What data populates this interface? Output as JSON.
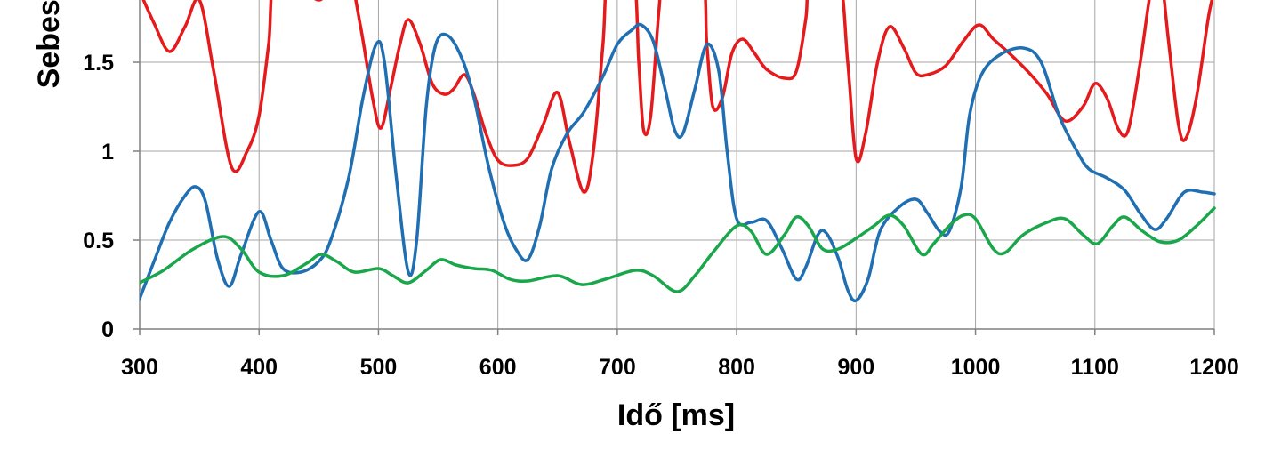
{
  "chart_data": {
    "type": "line",
    "title": "",
    "xlabel": "Idő [ms]",
    "ylabel": "Sebesség",
    "xlim": [
      300,
      1200
    ],
    "ylim": [
      0,
      2
    ],
    "x_ticks": [
      300,
      400,
      500,
      600,
      700,
      800,
      900,
      1000,
      1100,
      1200
    ],
    "y_ticks": [
      0,
      0.5,
      1,
      1.5
    ],
    "grid": true,
    "legend": "none",
    "colors": {
      "red": "#e41a1c",
      "blue": "#1f6fb2",
      "green": "#1aa64a",
      "grid": "#a6a6a6",
      "axis": "#808080"
    },
    "series": [
      {
        "color": "#e41a1c",
        "points": [
          [
            300,
            1.9
          ],
          [
            312,
            1.72
          ],
          [
            325,
            1.56
          ],
          [
            338,
            1.7
          ],
          [
            350,
            1.85
          ],
          [
            362,
            1.45
          ],
          [
            377,
            0.91
          ],
          [
            390,
            1.0
          ],
          [
            400,
            1.2
          ],
          [
            408,
            1.6
          ],
          [
            415,
            2.0
          ],
          [
            450,
            1.85
          ],
          [
            460,
            2.0
          ],
          [
            475,
            2.0
          ],
          [
            485,
            1.7
          ],
          [
            495,
            1.3
          ],
          [
            502,
            1.13
          ],
          [
            510,
            1.35
          ],
          [
            518,
            1.6
          ],
          [
            525,
            1.74
          ],
          [
            535,
            1.6
          ],
          [
            545,
            1.38
          ],
          [
            555,
            1.32
          ],
          [
            563,
            1.35
          ],
          [
            572,
            1.43
          ],
          [
            580,
            1.32
          ],
          [
            590,
            1.1
          ],
          [
            600,
            0.95
          ],
          [
            612,
            0.92
          ],
          [
            625,
            0.96
          ],
          [
            638,
            1.15
          ],
          [
            650,
            1.33
          ],
          [
            660,
            1.05
          ],
          [
            672,
            0.77
          ],
          [
            680,
            1.0
          ],
          [
            688,
            1.6
          ],
          [
            693,
            2.0
          ],
          [
            713,
            2.0
          ],
          [
            718,
            1.5
          ],
          [
            722,
            1.12
          ],
          [
            728,
            1.2
          ],
          [
            735,
            1.8
          ],
          [
            740,
            2.0
          ],
          [
            770,
            2.0
          ],
          [
            775,
            1.6
          ],
          [
            780,
            1.25
          ],
          [
            788,
            1.3
          ],
          [
            796,
            1.55
          ],
          [
            805,
            1.63
          ],
          [
            815,
            1.55
          ],
          [
            825,
            1.46
          ],
          [
            840,
            1.41
          ],
          [
            850,
            1.45
          ],
          [
            858,
            1.75
          ],
          [
            862,
            2.0
          ],
          [
            885,
            2.0
          ],
          [
            893,
            1.5
          ],
          [
            900,
            0.96
          ],
          [
            908,
            1.1
          ],
          [
            918,
            1.5
          ],
          [
            928,
            1.7
          ],
          [
            940,
            1.58
          ],
          [
            950,
            1.44
          ],
          [
            960,
            1.43
          ],
          [
            975,
            1.48
          ],
          [
            990,
            1.62
          ],
          [
            1003,
            1.71
          ],
          [
            1015,
            1.63
          ],
          [
            1030,
            1.54
          ],
          [
            1045,
            1.44
          ],
          [
            1060,
            1.32
          ],
          [
            1075,
            1.17
          ],
          [
            1090,
            1.25
          ],
          [
            1100,
            1.38
          ],
          [
            1110,
            1.3
          ],
          [
            1120,
            1.12
          ],
          [
            1128,
            1.12
          ],
          [
            1138,
            1.5
          ],
          [
            1148,
            1.95
          ],
          [
            1155,
            2.0
          ],
          [
            1162,
            1.6
          ],
          [
            1170,
            1.15
          ],
          [
            1176,
            1.07
          ],
          [
            1185,
            1.3
          ],
          [
            1195,
            1.75
          ],
          [
            1200,
            1.9
          ]
        ]
      },
      {
        "color": "#1f6fb2",
        "points": [
          [
            300,
            0.17
          ],
          [
            312,
            0.38
          ],
          [
            325,
            0.6
          ],
          [
            338,
            0.75
          ],
          [
            347,
            0.8
          ],
          [
            355,
            0.72
          ],
          [
            365,
            0.4
          ],
          [
            375,
            0.24
          ],
          [
            385,
            0.42
          ],
          [
            400,
            0.66
          ],
          [
            410,
            0.5
          ],
          [
            420,
            0.34
          ],
          [
            435,
            0.32
          ],
          [
            450,
            0.38
          ],
          [
            460,
            0.5
          ],
          [
            475,
            0.85
          ],
          [
            487,
            1.3
          ],
          [
            498,
            1.6
          ],
          [
            505,
            1.5
          ],
          [
            515,
            0.85
          ],
          [
            525,
            0.32
          ],
          [
            532,
            0.5
          ],
          [
            540,
            1.25
          ],
          [
            548,
            1.6
          ],
          [
            558,
            1.65
          ],
          [
            570,
            1.52
          ],
          [
            580,
            1.3
          ],
          [
            592,
            0.92
          ],
          [
            605,
            0.6
          ],
          [
            615,
            0.45
          ],
          [
            625,
            0.39
          ],
          [
            635,
            0.58
          ],
          [
            645,
            0.9
          ],
          [
            658,
            1.1
          ],
          [
            672,
            1.22
          ],
          [
            688,
            1.42
          ],
          [
            700,
            1.6
          ],
          [
            712,
            1.68
          ],
          [
            720,
            1.71
          ],
          [
            730,
            1.62
          ],
          [
            740,
            1.35
          ],
          [
            748,
            1.12
          ],
          [
            755,
            1.1
          ],
          [
            765,
            1.35
          ],
          [
            775,
            1.6
          ],
          [
            785,
            1.45
          ],
          [
            792,
            1.0
          ],
          [
            800,
            0.62
          ],
          [
            812,
            0.6
          ],
          [
            825,
            0.61
          ],
          [
            838,
            0.45
          ],
          [
            850,
            0.28
          ],
          [
            858,
            0.35
          ],
          [
            868,
            0.53
          ],
          [
            875,
            0.54
          ],
          [
            885,
            0.4
          ],
          [
            893,
            0.22
          ],
          [
            900,
            0.16
          ],
          [
            910,
            0.28
          ],
          [
            920,
            0.55
          ],
          [
            935,
            0.68
          ],
          [
            950,
            0.73
          ],
          [
            960,
            0.65
          ],
          [
            970,
            0.55
          ],
          [
            978,
            0.55
          ],
          [
            988,
            0.8
          ],
          [
            995,
            1.2
          ],
          [
            1005,
            1.43
          ],
          [
            1020,
            1.54
          ],
          [
            1040,
            1.58
          ],
          [
            1055,
            1.5
          ],
          [
            1070,
            1.2
          ],
          [
            1085,
            1.0
          ],
          [
            1095,
            0.9
          ],
          [
            1110,
            0.85
          ],
          [
            1125,
            0.78
          ],
          [
            1138,
            0.65
          ],
          [
            1150,
            0.56
          ],
          [
            1160,
            0.62
          ],
          [
            1175,
            0.77
          ],
          [
            1190,
            0.77
          ],
          [
            1200,
            0.76
          ]
        ]
      },
      {
        "color": "#1aa64a",
        "points": [
          [
            300,
            0.26
          ],
          [
            320,
            0.33
          ],
          [
            345,
            0.45
          ],
          [
            370,
            0.52
          ],
          [
            385,
            0.45
          ],
          [
            400,
            0.32
          ],
          [
            420,
            0.3
          ],
          [
            440,
            0.37
          ],
          [
            452,
            0.42
          ],
          [
            465,
            0.38
          ],
          [
            480,
            0.32
          ],
          [
            500,
            0.34
          ],
          [
            512,
            0.3
          ],
          [
            525,
            0.26
          ],
          [
            540,
            0.33
          ],
          [
            552,
            0.39
          ],
          [
            565,
            0.36
          ],
          [
            580,
            0.34
          ],
          [
            595,
            0.33
          ],
          [
            610,
            0.28
          ],
          [
            625,
            0.27
          ],
          [
            650,
            0.3
          ],
          [
            670,
            0.25
          ],
          [
            690,
            0.28
          ],
          [
            715,
            0.33
          ],
          [
            730,
            0.3
          ],
          [
            750,
            0.21
          ],
          [
            765,
            0.3
          ],
          [
            780,
            0.43
          ],
          [
            800,
            0.58
          ],
          [
            812,
            0.55
          ],
          [
            825,
            0.42
          ],
          [
            840,
            0.53
          ],
          [
            850,
            0.63
          ],
          [
            860,
            0.58
          ],
          [
            872,
            0.45
          ],
          [
            885,
            0.45
          ],
          [
            900,
            0.51
          ],
          [
            915,
            0.58
          ],
          [
            928,
            0.64
          ],
          [
            940,
            0.58
          ],
          [
            955,
            0.42
          ],
          [
            965,
            0.48
          ],
          [
            978,
            0.58
          ],
          [
            990,
            0.64
          ],
          [
            1000,
            0.62
          ],
          [
            1015,
            0.45
          ],
          [
            1025,
            0.43
          ],
          [
            1040,
            0.53
          ],
          [
            1060,
            0.6
          ],
          [
            1075,
            0.62
          ],
          [
            1090,
            0.53
          ],
          [
            1102,
            0.48
          ],
          [
            1115,
            0.58
          ],
          [
            1125,
            0.63
          ],
          [
            1140,
            0.55
          ],
          [
            1155,
            0.49
          ],
          [
            1170,
            0.5
          ],
          [
            1185,
            0.58
          ],
          [
            1200,
            0.68
          ]
        ]
      }
    ]
  }
}
